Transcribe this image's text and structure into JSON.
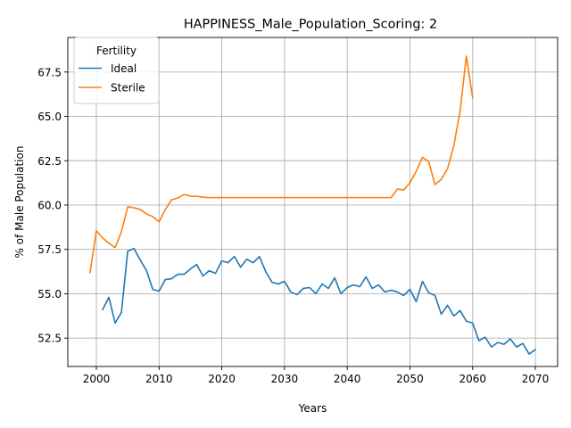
{
  "chart_data": {
    "type": "line",
    "title": "HAPPINESS_Male_Population_Scoring: 2",
    "xlabel": "Years",
    "ylabel": "% of Male Population",
    "xlim": [
      1995.45,
      2073.55
    ],
    "ylim": [
      50.9,
      69.45
    ],
    "xticks": [
      2000,
      2010,
      2020,
      2030,
      2040,
      2050,
      2060,
      2070
    ],
    "yticks": [
      52.5,
      55.0,
      57.5,
      60.0,
      62.5,
      65.0,
      67.5
    ],
    "ytick_labels": [
      "52.5",
      "55.0",
      "57.5",
      "60.0",
      "62.5",
      "65.0",
      "67.5"
    ],
    "grid": true,
    "legend": {
      "title": "Fertility",
      "position": "top-left"
    },
    "series": [
      {
        "name": "Ideal",
        "color": "#1f77b4",
        "x": [
          2001,
          2002,
          2003,
          2004,
          2005,
          2006,
          2007,
          2008,
          2009,
          2010,
          2011,
          2012,
          2013,
          2014,
          2015,
          2016,
          2017,
          2018,
          2019,
          2020,
          2021,
          2022,
          2023,
          2024,
          2025,
          2026,
          2027,
          2028,
          2029,
          2030,
          2031,
          2032,
          2033,
          2034,
          2035,
          2036,
          2037,
          2038,
          2039,
          2040,
          2041,
          2042,
          2043,
          2044,
          2045,
          2046,
          2047,
          2048,
          2049,
          2050,
          2051,
          2052,
          2053,
          2054,
          2055,
          2056,
          2057,
          2058,
          2059,
          2060,
          2061,
          2062,
          2063,
          2064,
          2065,
          2066,
          2067,
          2068,
          2069,
          2070
        ],
        "values": [
          54.1,
          54.8,
          53.35,
          53.95,
          57.4,
          57.55,
          56.9,
          56.3,
          55.25,
          55.15,
          55.8,
          55.85,
          56.1,
          56.1,
          56.4,
          56.65,
          56.0,
          56.3,
          56.15,
          56.85,
          56.75,
          57.1,
          56.5,
          56.95,
          56.75,
          57.1,
          56.25,
          55.65,
          55.55,
          55.7,
          55.1,
          54.95,
          55.3,
          55.35,
          55.0,
          55.55,
          55.3,
          55.9,
          55.0,
          55.35,
          55.5,
          55.4,
          55.95,
          55.3,
          55.5,
          55.1,
          55.2,
          55.1,
          54.9,
          55.25,
          54.55,
          55.7,
          55.05,
          54.9,
          53.85,
          54.35,
          53.75,
          54.05,
          53.45,
          53.35,
          52.35,
          52.55,
          52.0,
          52.25,
          52.15,
          52.45,
          52.0,
          52.2,
          51.6,
          51.85
        ]
      },
      {
        "name": "Sterile",
        "color": "#ff7f0e",
        "x": [
          1999,
          2000,
          2001,
          2002,
          2003,
          2004,
          2005,
          2006,
          2007,
          2008,
          2009,
          2010,
          2011,
          2012,
          2013,
          2014,
          2015,
          2016,
          2017,
          2018,
          2019,
          2020,
          2021,
          2022,
          2023,
          2024,
          2025,
          2026,
          2027,
          2028,
          2029,
          2030,
          2031,
          2032,
          2033,
          2034,
          2035,
          2036,
          2037,
          2038,
          2039,
          2040,
          2041,
          2042,
          2043,
          2044,
          2045,
          2046,
          2047,
          2048,
          2049,
          2050,
          2051,
          2052,
          2053,
          2054,
          2055,
          2056,
          2057,
          2058,
          2059,
          2060
        ],
        "values": [
          56.2,
          58.55,
          58.15,
          57.85,
          57.6,
          58.5,
          59.9,
          59.85,
          59.75,
          59.5,
          59.35,
          59.05,
          59.75,
          60.3,
          60.4,
          60.6,
          60.5,
          60.5,
          60.45,
          60.42,
          60.42,
          60.42,
          60.42,
          60.42,
          60.42,
          60.42,
          60.42,
          60.42,
          60.42,
          60.42,
          60.42,
          60.42,
          60.42,
          60.42,
          60.42,
          60.42,
          60.42,
          60.42,
          60.42,
          60.42,
          60.42,
          60.42,
          60.42,
          60.42,
          60.42,
          60.42,
          60.42,
          60.42,
          60.42,
          60.9,
          60.85,
          61.25,
          61.9,
          62.7,
          62.45,
          61.15,
          61.45,
          62.05,
          63.35,
          65.3,
          68.4,
          66.05
        ]
      }
    ]
  }
}
